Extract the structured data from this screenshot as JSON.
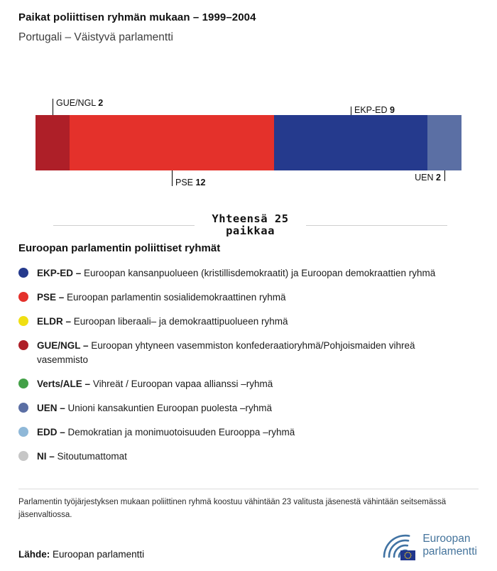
{
  "header": {
    "title": "Paikat poliittisen ryhmän mukaan – 1999–2004",
    "subtitle": "Portugali – Väistyvä parlamentti"
  },
  "chart_data": {
    "type": "bar",
    "variant": "stacked-horizontal",
    "title": "Paikat poliittisen ryhmän mukaan – 1999–2004",
    "subtitle": "Portugali – Väistyvä parlamentti",
    "categories": [
      "GUE/NGL",
      "PSE",
      "EKP-ED",
      "UEN"
    ],
    "values": [
      2,
      12,
      9,
      2
    ],
    "total": 25,
    "total_caption": "Yhteensä 25 paikkaa",
    "caption_lines": [
      "Yhteensä 25",
      "paikkaa"
    ],
    "segments": [
      {
        "name": "GUE/NGL",
        "value": 2,
        "color": "#ae1f28"
      },
      {
        "name": "PSE",
        "value": 12,
        "color": "#e4312b"
      },
      {
        "name": "EKP-ED",
        "value": 9,
        "color": "#253a8d"
      },
      {
        "name": "UEN",
        "value": 2,
        "color": "#5b6fa4"
      }
    ]
  },
  "legend": {
    "title": "Euroopan parlamentin poliittiset ryhmät",
    "items": [
      {
        "abbr": "EKP-ED –",
        "desc": "Euroopan kansanpuolueen (kristillisdemokraatit) ja Euroopan demokraattien ryhmä",
        "color": "#253a8d"
      },
      {
        "abbr": "PSE –",
        "desc": "Euroopan parlamentin sosialidemokraattinen ryhmä",
        "color": "#e4312b"
      },
      {
        "abbr": "ELDR –",
        "desc": "Euroopan liberaali– ja demokraattipuolueen ryhmä",
        "color": "#f0df13"
      },
      {
        "abbr": "GUE/NGL –",
        "desc": "Euroopan yhtyneen vasemmiston konfederaatioryhmä/Pohjoismaiden vihreä vasemmisto",
        "color": "#ae1f28"
      },
      {
        "abbr": "Verts/ALE –",
        "desc": "Vihreät / Euroopan vapaa allianssi –ryhmä",
        "color": "#43a047"
      },
      {
        "abbr": "UEN –",
        "desc": "Unioni kansakuntien Euroopan puolesta –ryhmä",
        "color": "#5b6fa4"
      },
      {
        "abbr": "EDD –",
        "desc": "Demokratian ja monimuotoisuuden Eurooppa –ryhmä",
        "color": "#8fb8d8"
      },
      {
        "abbr": "NI –",
        "desc": "Sitoutumattomat",
        "color": "#c6c6c6"
      }
    ]
  },
  "footer": {
    "note": "Parlamentin työjärjestyksen mukaan poliittinen ryhmä koostuu vähintään 23 valitusta jäsenestä vähintään seitsemässä jäsenvaltiossa.",
    "source_label": "Lähde:",
    "source_value": "Euroopan parlamentti",
    "logo_line1": "Euroopan",
    "logo_line2": "parlamentti"
  }
}
